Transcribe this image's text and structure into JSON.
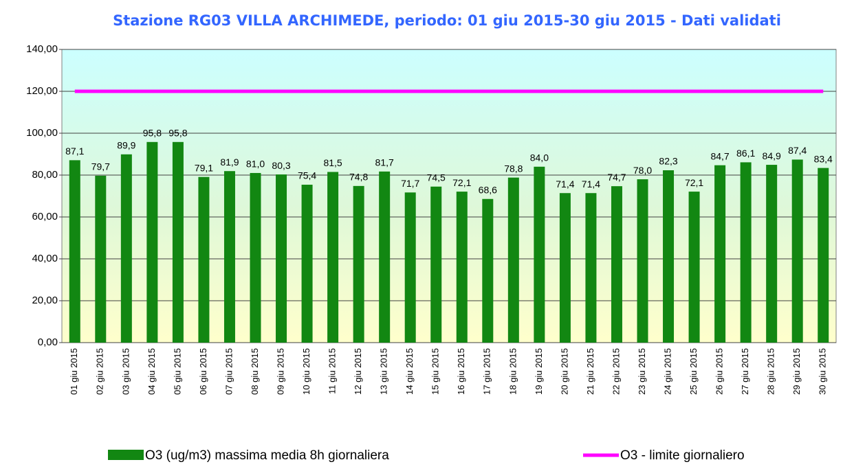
{
  "chart_data": {
    "type": "bar",
    "title": "Stazione RG03 VILLA ARCHIMEDE, periodo: 01 giu 2015-30 giu 2015 - Dati validati",
    "categories": [
      "01 giu 2015",
      "02 giu 2015",
      "03 giu 2015",
      "04 giu 2015",
      "05 giu 2015",
      "06 giu 2015",
      "07 giu 2015",
      "08 giu 2015",
      "09 giu 2015",
      "10 giu 2015",
      "11 giu 2015",
      "12 giu 2015",
      "13 giu 2015",
      "14 giu 2015",
      "15 giu 2015",
      "16 giu 2015",
      "17 giu 2015",
      "18 giu 2015",
      "19 giu 2015",
      "20 giu 2015",
      "21 giu 2015",
      "22 giu 2015",
      "23 giu 2015",
      "24 giu 2015",
      "25 giu 2015",
      "26 giu 2015",
      "27 giu 2015",
      "28 giu 2015",
      "29 giu 2015",
      "30 giu 2015"
    ],
    "series": [
      {
        "name": "O3 (ug/m3) massima media 8h giornaliera",
        "type": "bar",
        "color": "#128712",
        "values": [
          87.1,
          79.7,
          89.9,
          95.8,
          95.8,
          79.1,
          81.9,
          81.0,
          80.3,
          75.4,
          81.5,
          74.8,
          81.7,
          71.7,
          74.5,
          72.1,
          68.6,
          78.8,
          84.0,
          71.4,
          71.4,
          74.7,
          78.0,
          82.3,
          72.1,
          84.7,
          86.1,
          84.9,
          87.4,
          83.4
        ],
        "value_labels": [
          "87,1",
          "79,7",
          "89,9",
          "95,8",
          "95,8",
          "79,1",
          "81,9",
          "81,0",
          "80,3",
          "75,4",
          "81,5",
          "74,8",
          "81,7",
          "71,7",
          "74,5",
          "72,1",
          "68,6",
          "78,8",
          "84,0",
          "71,4",
          "71,4",
          "74,7",
          "78,0",
          "82,3",
          "72,1",
          "84,7",
          "86,1",
          "84,9",
          "87,4",
          "83,4"
        ]
      },
      {
        "name": "O3 - limite giornaliero",
        "type": "line",
        "color": "#ff00ff",
        "values": [
          120,
          120,
          120,
          120,
          120,
          120,
          120,
          120,
          120,
          120,
          120,
          120,
          120,
          120,
          120,
          120,
          120,
          120,
          120,
          120,
          120,
          120,
          120,
          120,
          120,
          120,
          120,
          120,
          120,
          120
        ]
      }
    ],
    "ylim": [
      0,
      140
    ],
    "yticks": [
      {
        "value": 0,
        "label": "0,00"
      },
      {
        "value": 20,
        "label": "20,00"
      },
      {
        "value": 40,
        "label": "40,00"
      },
      {
        "value": 60,
        "label": "60,00"
      },
      {
        "value": 80,
        "label": "80,00"
      },
      {
        "value": 100,
        "label": "100,00"
      },
      {
        "value": 120,
        "label": "120,00"
      },
      {
        "value": 140,
        "label": "140,00"
      }
    ],
    "grid": true,
    "legend": "bottom"
  }
}
